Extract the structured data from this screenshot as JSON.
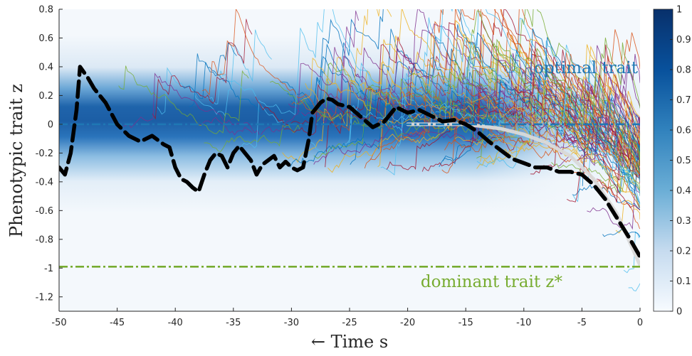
{
  "chart_data": {
    "type": "line",
    "title": "",
    "xlabel": "← Time s",
    "ylabel": "Phenotypic trait z",
    "xlim": [
      -50,
      0
    ],
    "ylim": [
      -1.3,
      0.8
    ],
    "x_ticks": [
      "-50",
      "-45",
      "-40",
      "-35",
      "-30",
      "-25",
      "-20",
      "-15",
      "-10",
      "-5",
      "0"
    ],
    "y_ticks": [
      "0.8",
      "0.6",
      "0.4",
      "0.2",
      "0",
      "-0.2",
      "-0.4",
      "-0.6",
      "-0.8",
      "-1",
      "-1.2"
    ],
    "colorbar": {
      "ticks": [
        "1",
        "0.9",
        "0.8",
        "0.7",
        "0.6",
        "0.5",
        "0.4",
        "0.3",
        "0.2",
        "0.1",
        "0"
      ],
      "range": [
        0,
        1
      ],
      "colormap": "Blues",
      "low_color": "#f7fbff",
      "high_color": "#08306b"
    },
    "annotations": [
      {
        "text": "optimal trait",
        "color": "#1f77b4"
      },
      {
        "text": "dominant trait z*",
        "color": "#77ac30"
      }
    ],
    "series": [
      {
        "style": "dashed",
        "color": "#000000",
        "x": [
          -50,
          -49.5,
          -49,
          -48.5,
          -48.2,
          -47.5,
          -47,
          -46,
          -45,
          -44,
          -43,
          -42,
          -41,
          -40.5,
          -40,
          -39.5,
          -39,
          -38.5,
          -38,
          -37.5,
          -37,
          -36.5,
          -36,
          -35.5,
          -35,
          -34.5,
          -34,
          -33.5,
          -33,
          -32.5,
          -32,
          -31.5,
          -31,
          -30.5,
          -30,
          -29.5,
          -29,
          -28.5,
          -28.2,
          -27.5,
          -27,
          -26.5,
          -26,
          -25,
          -24,
          -23,
          -22,
          -21,
          -20.5,
          -20,
          -19,
          -18,
          -17,
          -16,
          -15,
          -14,
          -13,
          -12,
          -11,
          -10,
          -9,
          -8,
          -7,
          -6,
          -5,
          -4,
          -3,
          -2,
          -1,
          0
        ],
        "y": [
          -0.3,
          -0.35,
          -0.2,
          0.1,
          0.4,
          0.32,
          0.25,
          0.15,
          0.0,
          -0.08,
          -0.12,
          -0.08,
          -0.14,
          -0.16,
          -0.3,
          -0.38,
          -0.4,
          -0.44,
          -0.47,
          -0.35,
          -0.25,
          -0.2,
          -0.22,
          -0.3,
          -0.2,
          -0.15,
          -0.2,
          -0.25,
          -0.35,
          -0.28,
          -0.25,
          -0.22,
          -0.3,
          -0.26,
          -0.3,
          -0.32,
          -0.3,
          -0.1,
          0.08,
          0.15,
          0.18,
          0.17,
          0.14,
          0.12,
          0.05,
          -0.02,
          0.02,
          0.12,
          0.1,
          0.08,
          0.1,
          0.06,
          0.02,
          0.03,
          0.0,
          -0.05,
          -0.12,
          -0.18,
          -0.24,
          -0.27,
          -0.3,
          -0.3,
          -0.33,
          -0.33,
          -0.35,
          -0.42,
          -0.52,
          -0.65,
          -0.78,
          -0.92
        ]
      },
      {
        "style": "solid",
        "color": "#d9d9d9",
        "x": [
          -20,
          -15,
          -12,
          -10,
          -8,
          -6,
          -4,
          -2,
          0
        ],
        "y": [
          0.0,
          0.0,
          -0.03,
          -0.07,
          -0.13,
          -0.22,
          -0.38,
          -0.62,
          -0.98
        ]
      },
      {
        "style": "dashdot",
        "color": "#1f77b4",
        "x": [
          -50,
          0
        ],
        "y": [
          0.0,
          0.0
        ]
      },
      {
        "style": "dashdot",
        "color": "#77ac30",
        "x": [
          -50,
          0
        ],
        "y": [
          -0.99,
          -0.99
        ]
      }
    ]
  }
}
